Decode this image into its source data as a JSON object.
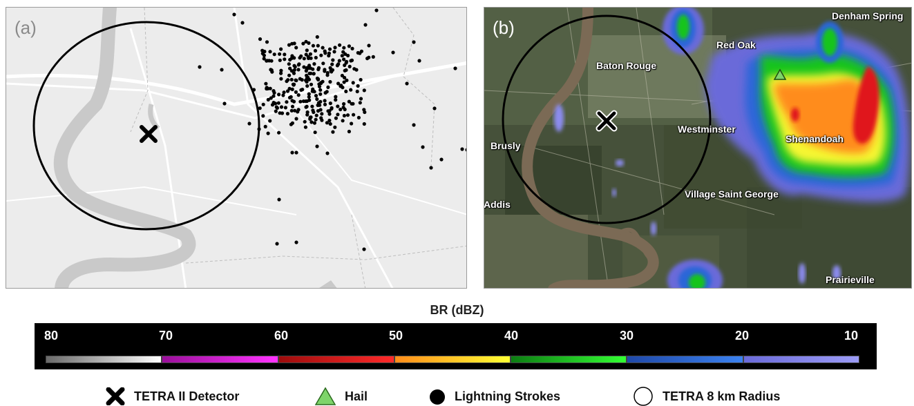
{
  "panels": {
    "a": {
      "tag": "(a)"
    },
    "b": {
      "tag": "(b)",
      "places": {
        "denham": "Denham Spring",
        "red_oak": "Red Oak",
        "baton_rouge": "Baton Rouge",
        "westminster": "Westminster",
        "brusly": "Brusly",
        "shenandoah": "Shenandoah",
        "addis": "Addis",
        "village": "Village Saint George",
        "prairieville": "Prairieville"
      }
    }
  },
  "scale": {
    "title": "BR (dBZ)",
    "ticks": [
      "80",
      "70",
      "60",
      "50",
      "40",
      "30",
      "20",
      "10"
    ],
    "gradients": [
      [
        "#6a6a6a",
        "#ffffff"
      ],
      [
        "#9b0f9b",
        "#ff33ff"
      ],
      [
        "#9e0c0c",
        "#ff2a2a"
      ],
      [
        "#ff8c1a",
        "#ffff33"
      ],
      [
        "#0c7d12",
        "#33ff33"
      ],
      [
        "#1f48a8",
        "#3b82f0"
      ],
      [
        "#6a6ad9",
        "#9c9cf7"
      ]
    ]
  },
  "legend": {
    "detector": "TETRA II Detector",
    "hail": "Hail",
    "lightning": "Lightning Strokes",
    "radius": "TETRA 8 km Radius"
  },
  "colors": {
    "hail_fill": "#7ed46a",
    "map_a_background": "#ececec",
    "river_a": "#c9c9c9",
    "river_b": "#7b6a55",
    "satellite_base": "#46513a"
  }
}
